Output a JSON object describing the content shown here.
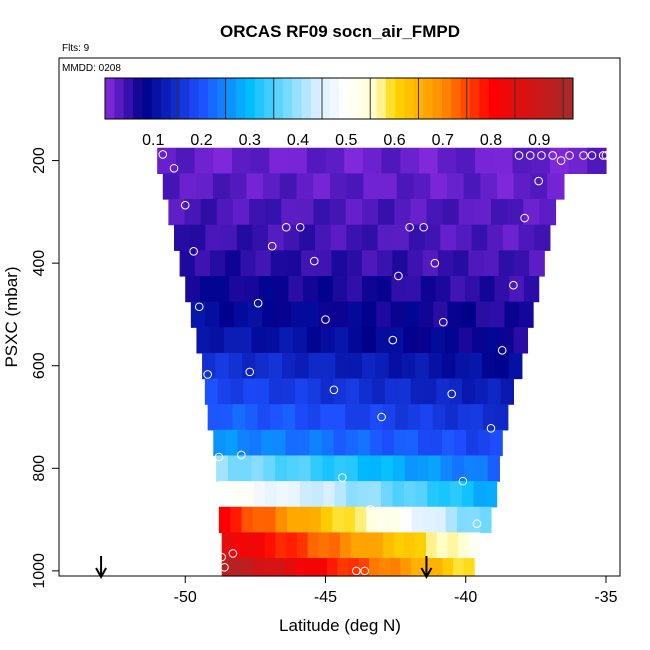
{
  "chart_data": {
    "type": "heatmap",
    "title": "ORCAS RF09 socn_air_FMPD",
    "flights_label": "Flts: 9",
    "date_label": "MMDD: 0208",
    "xlabel": "Latitude (deg N)",
    "ylabel": "PSXC (mbar)",
    "xlim": [
      -54.5,
      -34.5
    ],
    "ylim": [
      1010,
      0
    ],
    "x_ticks": [
      -50,
      -45,
      -40,
      -35
    ],
    "x_tick_labels": [
      "-50",
      "-45",
      "-40",
      "-35"
    ],
    "y_ticks": [
      200,
      400,
      600,
      800,
      1000
    ],
    "y_tick_labels": [
      "200",
      "400",
      "600",
      "800",
      "1000"
    ],
    "colorbar": {
      "range": [
        0,
        0.97
      ],
      "ticks": [
        0.1,
        0.2,
        0.3,
        0.4,
        0.5,
        0.6,
        0.7,
        0.8,
        0.9
      ],
      "tick_labels": [
        "0.1",
        "0.2",
        "0.3",
        "0.4",
        "0.5",
        "0.6",
        "0.7",
        "0.8",
        "0.9"
      ],
      "stops": [
        {
          "v": 0.0,
          "c": "#8a2be2"
        },
        {
          "v": 0.08,
          "c": "#00008b"
        },
        {
          "v": 0.2,
          "c": "#1e4fff"
        },
        {
          "v": 0.3,
          "c": "#00bfff"
        },
        {
          "v": 0.44,
          "c": "#d8efff"
        },
        {
          "v": 0.5,
          "c": "#ffffff"
        },
        {
          "v": 0.56,
          "c": "#ffffcc"
        },
        {
          "v": 0.6,
          "c": "#ffd700"
        },
        {
          "v": 0.7,
          "c": "#ff8c00"
        },
        {
          "v": 0.8,
          "c": "#ff0000"
        },
        {
          "v": 0.97,
          "c": "#a52a2a"
        }
      ]
    },
    "field_bands": [
      {
        "p": [
          175,
          225
        ],
        "lat": [
          -51.0,
          -35.0
        ],
        "left": 0.02,
        "right": 0.02
      },
      {
        "p": [
          225,
          275
        ],
        "lat": [
          -50.8,
          -36.5
        ],
        "left": 0.03,
        "right": 0.02
      },
      {
        "p": [
          275,
          325
        ],
        "lat": [
          -50.6,
          -36.8
        ],
        "left": 0.04,
        "right": 0.03
      },
      {
        "p": [
          325,
          375
        ],
        "lat": [
          -50.4,
          -37.0
        ],
        "left": 0.05,
        "right": 0.03
      },
      {
        "p": [
          375,
          425
        ],
        "lat": [
          -50.2,
          -37.2
        ],
        "left": 0.06,
        "right": 0.04
      },
      {
        "p": [
          425,
          475
        ],
        "lat": [
          -50.0,
          -37.4
        ],
        "left": 0.08,
        "right": 0.05
      },
      {
        "p": [
          475,
          525
        ],
        "lat": [
          -49.8,
          -37.6
        ],
        "left": 0.1,
        "right": 0.06
      },
      {
        "p": [
          525,
          575
        ],
        "lat": [
          -49.6,
          -37.8
        ],
        "left": 0.12,
        "right": 0.07
      },
      {
        "p": [
          575,
          625
        ],
        "lat": [
          -49.4,
          -38.0
        ],
        "left": 0.16,
        "right": 0.09
      },
      {
        "p": [
          625,
          675
        ],
        "lat": [
          -49.3,
          -38.3
        ],
        "left": 0.19,
        "right": 0.12
      },
      {
        "p": [
          675,
          725
        ],
        "lat": [
          -49.2,
          -38.5
        ],
        "left": 0.22,
        "right": 0.15
      },
      {
        "p": [
          725,
          775
        ],
        "lat": [
          -49.0,
          -38.7
        ],
        "left": 0.26,
        "right": 0.18
      },
      {
        "p": [
          775,
          825
        ],
        "lat": [
          -48.9,
          -38.8
        ],
        "left": 0.4,
        "right": 0.22
      },
      {
        "p": [
          825,
          875
        ],
        "lat": [
          -48.8,
          -38.9
        ],
        "left": 0.52,
        "right": 0.28
      },
      {
        "p": [
          875,
          925
        ],
        "lat": [
          -48.8,
          -39.1
        ],
        "left": 0.8,
        "right": 0.35
      },
      {
        "p": [
          925,
          975
        ],
        "lat": [
          -48.7,
          -39.5
        ],
        "left": 0.86,
        "right": 0.52
      },
      {
        "p": [
          975,
          1010
        ],
        "lat": [
          -48.7,
          -39.7
        ],
        "left": 0.95,
        "right": 0.58
      }
    ],
    "points": [
      {
        "lat": -50.8,
        "p": 188
      },
      {
        "lat": -50.4,
        "p": 215
      },
      {
        "lat": -50.0,
        "p": 287
      },
      {
        "lat": -49.7,
        "p": 377
      },
      {
        "lat": -49.5,
        "p": 485
      },
      {
        "lat": -49.2,
        "p": 617
      },
      {
        "lat": -48.8,
        "p": 778
      },
      {
        "lat": -48.7,
        "p": 973
      },
      {
        "lat": -48.6,
        "p": 993
      },
      {
        "lat": -48.3,
        "p": 966
      },
      {
        "lat": -48.0,
        "p": 774
      },
      {
        "lat": -47.7,
        "p": 612
      },
      {
        "lat": -47.4,
        "p": 478
      },
      {
        "lat": -46.9,
        "p": 367
      },
      {
        "lat": -46.4,
        "p": 330
      },
      {
        "lat": -45.9,
        "p": 330
      },
      {
        "lat": -45.4,
        "p": 396
      },
      {
        "lat": -45.0,
        "p": 510
      },
      {
        "lat": -44.7,
        "p": 647
      },
      {
        "lat": -44.4,
        "p": 818
      },
      {
        "lat": -43.9,
        "p": 1000
      },
      {
        "lat": -43.6,
        "p": 1000
      },
      {
        "lat": -43.4,
        "p": 880
      },
      {
        "lat": -43.0,
        "p": 700
      },
      {
        "lat": -42.6,
        "p": 550
      },
      {
        "lat": -42.4,
        "p": 425
      },
      {
        "lat": -42.0,
        "p": 330
      },
      {
        "lat": -41.5,
        "p": 330
      },
      {
        "lat": -41.1,
        "p": 400
      },
      {
        "lat": -40.8,
        "p": 515
      },
      {
        "lat": -40.5,
        "p": 655
      },
      {
        "lat": -40.1,
        "p": 825
      },
      {
        "lat": -39.6,
        "p": 908
      },
      {
        "lat": -39.1,
        "p": 722
      },
      {
        "lat": -38.7,
        "p": 570
      },
      {
        "lat": -38.3,
        "p": 443
      },
      {
        "lat": -37.9,
        "p": 312
      },
      {
        "lat": -37.4,
        "p": 240
      },
      {
        "lat": -38.1,
        "p": 190
      },
      {
        "lat": -37.7,
        "p": 190
      },
      {
        "lat": -37.3,
        "p": 190
      },
      {
        "lat": -36.9,
        "p": 190
      },
      {
        "lat": -36.6,
        "p": 200
      },
      {
        "lat": -36.3,
        "p": 190
      },
      {
        "lat": -35.8,
        "p": 190
      },
      {
        "lat": -35.5,
        "p": 190
      },
      {
        "lat": -35.1,
        "p": 190
      },
      {
        "lat": -35.0,
        "p": 190
      }
    ],
    "arrows_lat": [
      -53.0,
      -41.4
    ]
  }
}
